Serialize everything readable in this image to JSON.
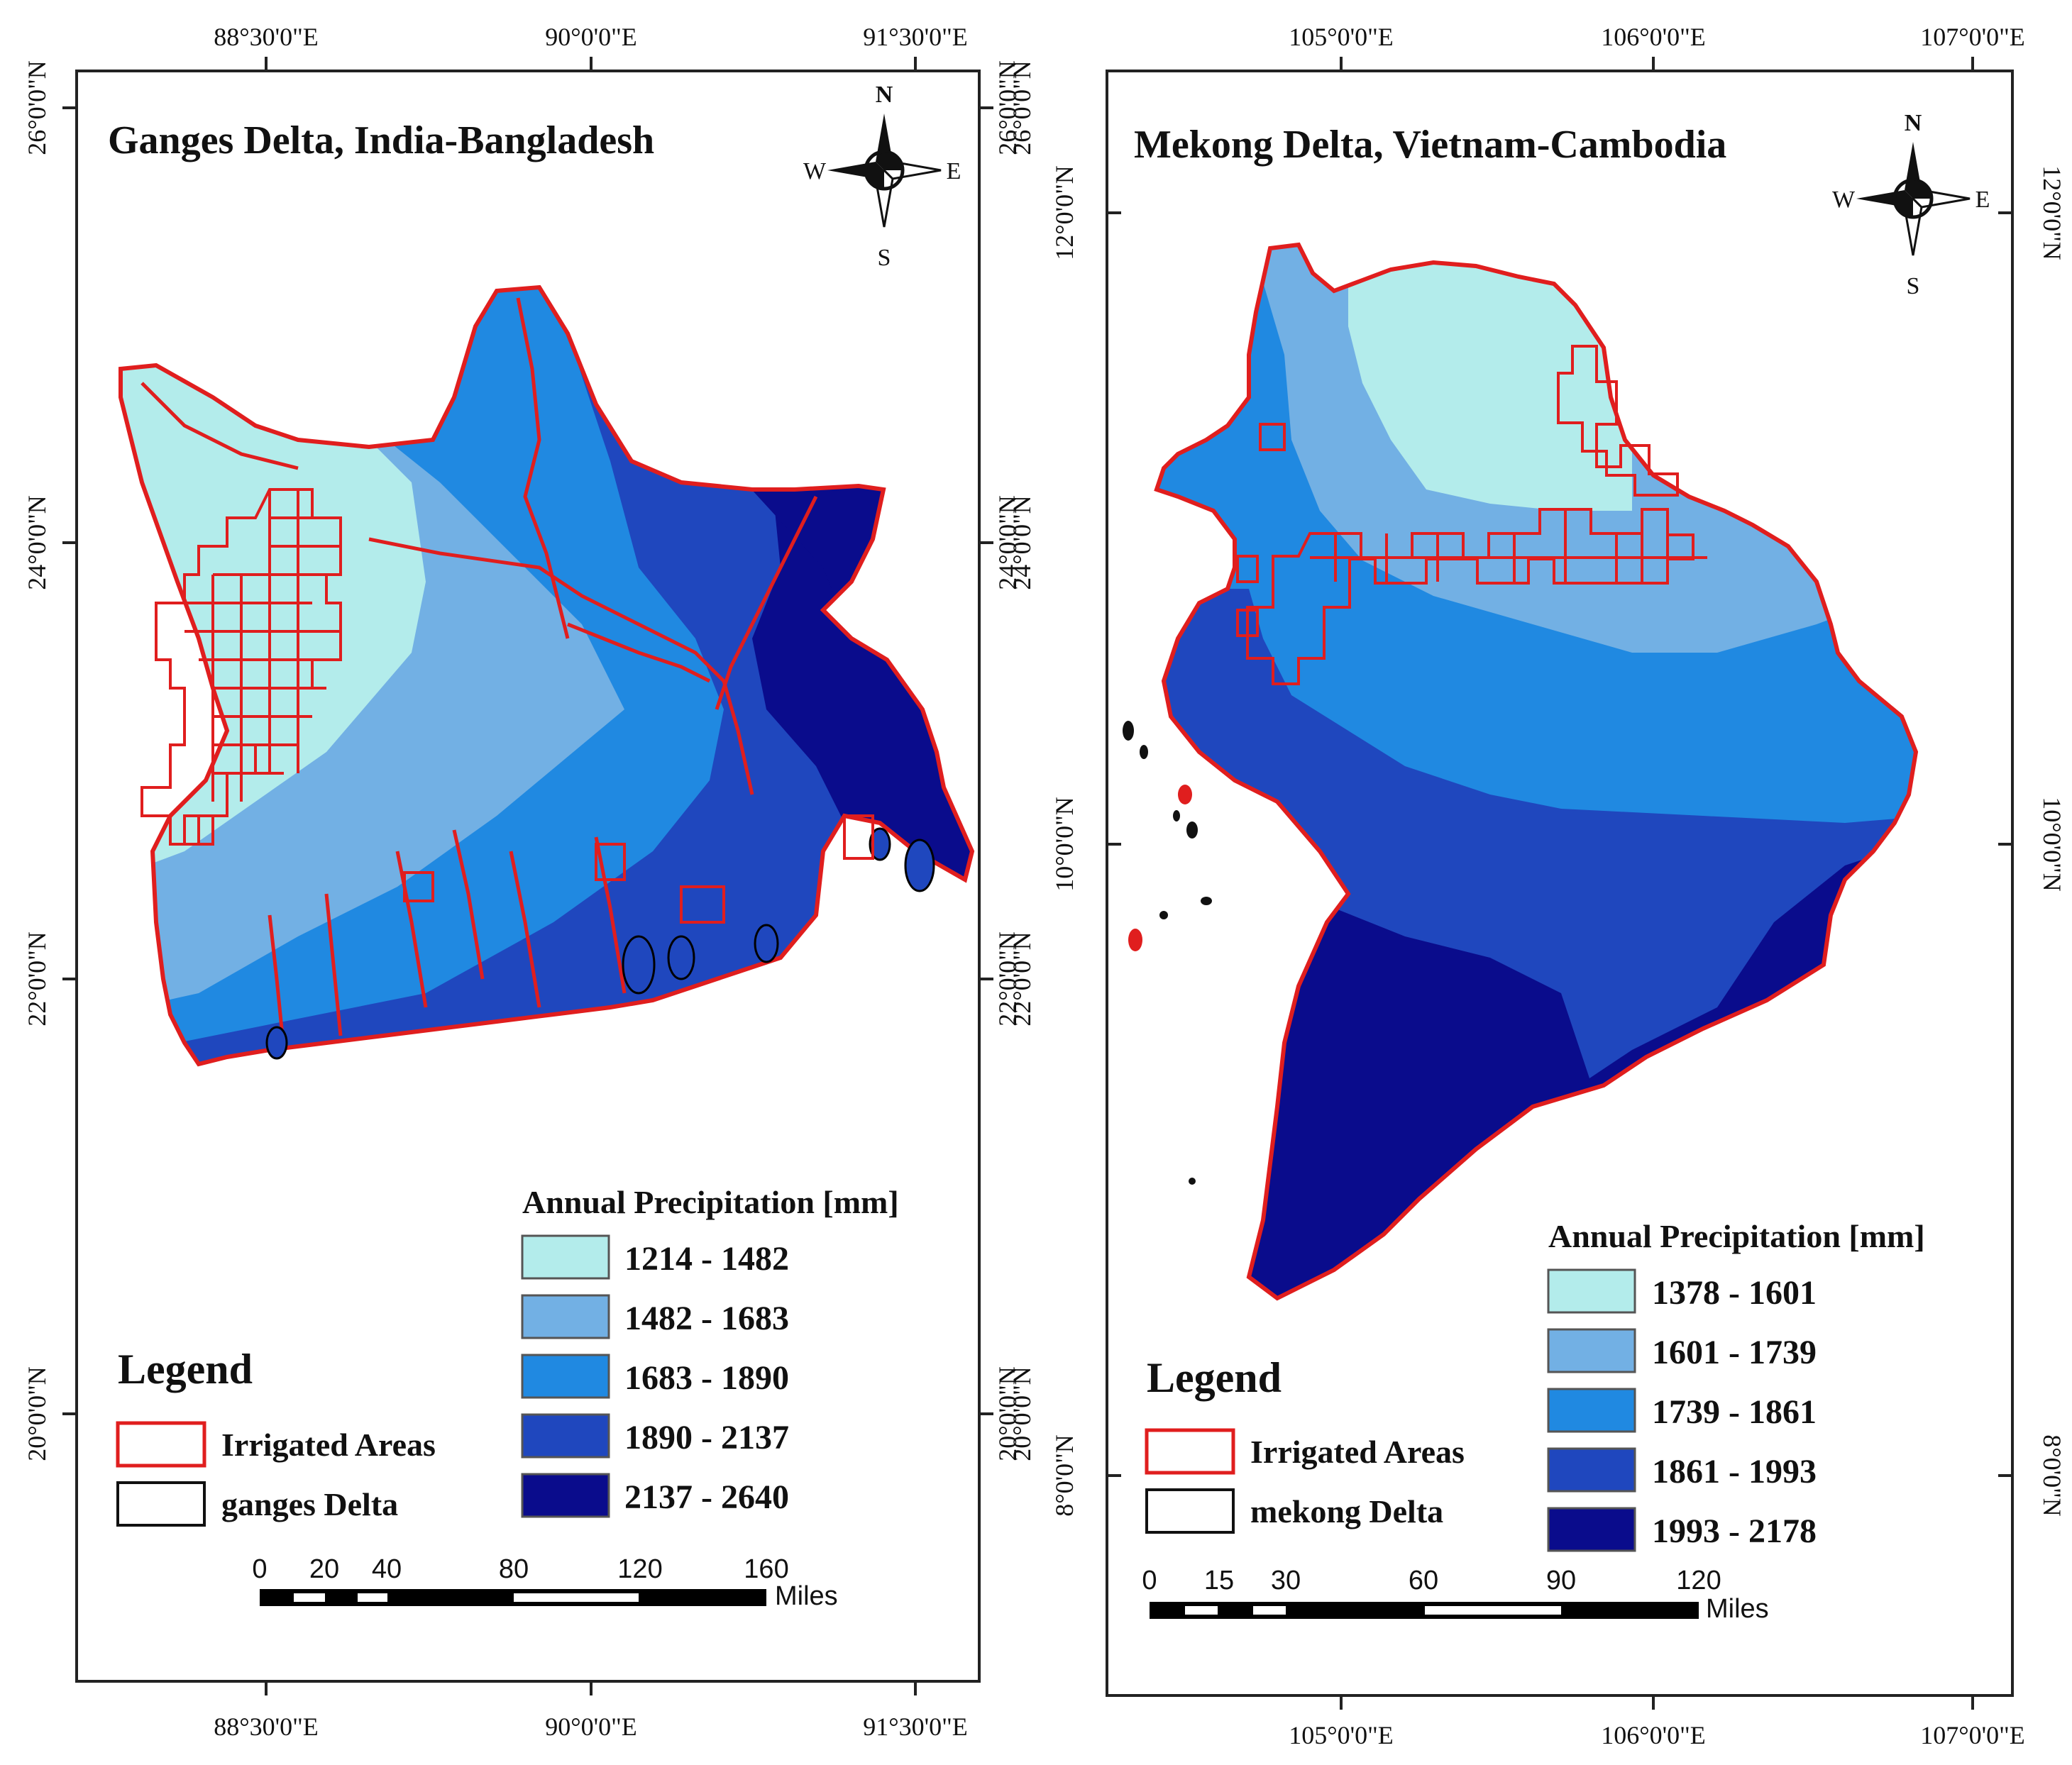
{
  "colors": {
    "class1": "#b3eceb",
    "class2": "#72b0e4",
    "class3": "#2089e1",
    "class4": "#1f47be",
    "class5": "#0a0c8c",
    "irrigated": "#e01e1e",
    "frame": "#222222"
  },
  "left_map": {
    "title": "Ganges Delta, India-Bangladesh",
    "top_ticks": [
      "88°30'0\"E",
      "90°0'0\"E",
      "91°30'0\"E"
    ],
    "bottom_ticks": [
      "88°30'0\"E",
      "90°0'0\"E",
      "91°30'0\"E"
    ],
    "left_ticks": [
      "26°0'0\"N",
      "24°0'0\"N",
      "22°0'0\"N",
      "20°0'0\"N"
    ],
    "right_ticks": [
      "26°0'0\"N",
      "24°0'0\"N",
      "22°0'0\"N",
      "20°0'0\"N"
    ],
    "compass": {
      "n": "N",
      "s": "S",
      "e": "E",
      "w": "W"
    },
    "precip_title": "Annual Precipitation [mm]",
    "precip_classes": [
      "1214 - 1482",
      "1482 - 1683",
      "1683 - 1890",
      "1890 - 2137",
      "2137 - 2640"
    ],
    "legend_title": "Legend",
    "legend_items": [
      "Irrigated Areas",
      "ganges Delta"
    ],
    "scale_labels": [
      "0",
      "20",
      "40",
      "80",
      "120",
      "160"
    ],
    "scale_unit": "Miles"
  },
  "right_map": {
    "title": "Mekong Delta, Vietnam-Cambodia",
    "top_ticks": [
      "105°0'0\"E",
      "106°0'0\"E",
      "107°0'0\"E"
    ],
    "bottom_ticks": [
      "105°0'0\"E",
      "106°0'0\"E",
      "107°0'0\"E"
    ],
    "left_ticks": [
      "26°0'0\"N",
      "24°0'0\"N",
      "22°0'0\"N",
      "20°0'0\"N"
    ],
    "right_ticks": [
      "12°0'0\"N",
      "10°0'0\"N",
      "8°0'0\"N"
    ],
    "inner_left_ticks": [
      "12°0'0\"N",
      "10°0'0\"N",
      "8°0'0\"N"
    ],
    "compass": {
      "n": "N",
      "s": "S",
      "e": "E",
      "w": "W"
    },
    "precip_title": "Annual Precipitation [mm]",
    "precip_classes": [
      "1378 - 1601",
      "1601 - 1739",
      "1739 - 1861",
      "1861 - 1993",
      "1993 - 2178"
    ],
    "legend_title": "Legend",
    "legend_items": [
      "Irrigated Areas",
      "mekong Delta"
    ],
    "scale_labels": [
      "0",
      "15",
      "30",
      "60",
      "90",
      "120"
    ],
    "scale_unit": "Miles"
  }
}
